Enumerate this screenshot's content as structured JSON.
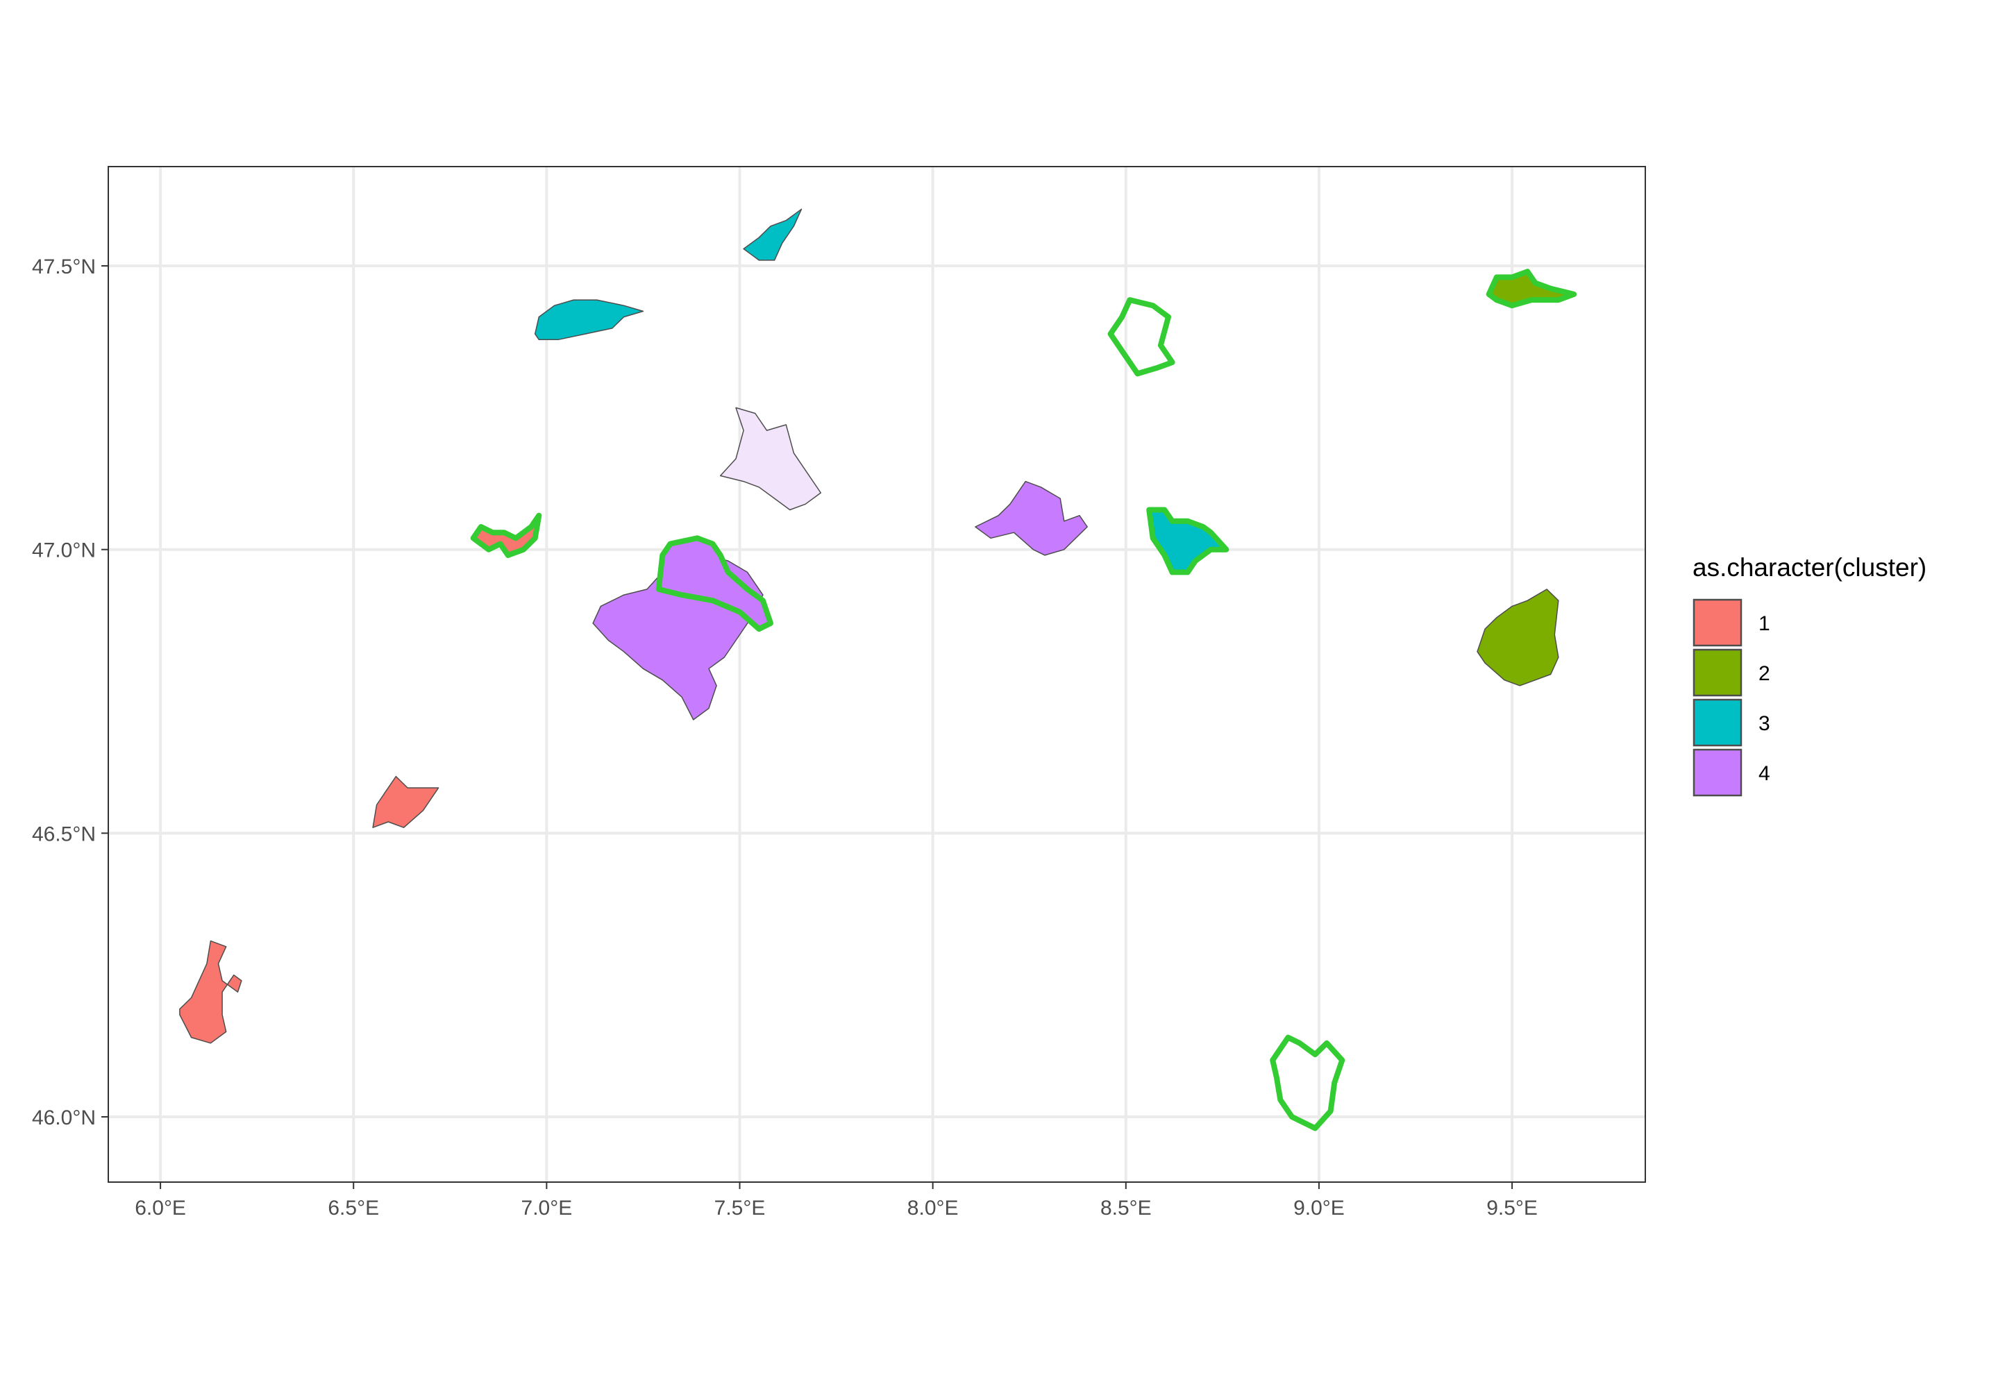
{
  "chart_data": {
    "type": "map",
    "title": "",
    "xlabel": "",
    "ylabel": "",
    "xlim": [
      5.865,
      9.845
    ],
    "ylim": [
      45.885,
      47.675
    ],
    "grid": true,
    "legend_placement": "right",
    "x_ticks": [
      {
        "value": 6.0,
        "label": "6.0°E"
      },
      {
        "value": 6.5,
        "label": "6.5°E"
      },
      {
        "value": 7.0,
        "label": "7.0°E"
      },
      {
        "value": 7.5,
        "label": "7.5°E"
      },
      {
        "value": 8.0,
        "label": "8.0°E"
      },
      {
        "value": 8.5,
        "label": "8.5°E"
      },
      {
        "value": 9.0,
        "label": "9.0°E"
      },
      {
        "value": 9.5,
        "label": "9.5°E"
      }
    ],
    "y_ticks": [
      {
        "value": 46.0,
        "label": "46.0°N"
      },
      {
        "value": 46.5,
        "label": "46.5°N"
      },
      {
        "value": 47.0,
        "label": "47.0°N"
      },
      {
        "value": 47.5,
        "label": "47.5°N"
      }
    ],
    "legend": {
      "title": "as.character(cluster)",
      "entries": [
        {
          "label": "1",
          "color": "#F8766D"
        },
        {
          "label": "2",
          "color": "#7CAE00"
        },
        {
          "label": "3",
          "color": "#00BFC4"
        },
        {
          "label": "4",
          "color": "#C77CFF"
        }
      ]
    },
    "highlight_color": "#33CC33",
    "regions": [
      {
        "cluster": "1",
        "fill": "#F8766D",
        "highlighted": false,
        "outline": [
          [
            6.05,
            46.18
          ],
          [
            6.08,
            46.14
          ],
          [
            6.13,
            46.13
          ],
          [
            6.17,
            46.15
          ],
          [
            6.16,
            46.18
          ],
          [
            6.16,
            46.22
          ],
          [
            6.19,
            46.25
          ],
          [
            6.21,
            46.24
          ],
          [
            6.2,
            46.22
          ],
          [
            6.16,
            46.24
          ],
          [
            6.15,
            46.27
          ],
          [
            6.17,
            46.3
          ],
          [
            6.13,
            46.31
          ],
          [
            6.12,
            46.27
          ],
          [
            6.1,
            46.24
          ],
          [
            6.08,
            46.21
          ],
          [
            6.05,
            46.19
          ]
        ]
      },
      {
        "cluster": "1",
        "fill": "#F8766D",
        "highlighted": false,
        "outline": [
          [
            6.55,
            46.51
          ],
          [
            6.56,
            46.55
          ],
          [
            6.58,
            46.57
          ],
          [
            6.61,
            46.6
          ],
          [
            6.64,
            46.58
          ],
          [
            6.72,
            46.58
          ],
          [
            6.68,
            46.54
          ],
          [
            6.63,
            46.51
          ],
          [
            6.59,
            46.52
          ],
          [
            6.55,
            46.51
          ]
        ]
      },
      {
        "cluster": "1",
        "fill": "#F8766D",
        "highlighted": true,
        "outline": [
          [
            6.81,
            47.02
          ],
          [
            6.83,
            47.04
          ],
          [
            6.86,
            47.03
          ],
          [
            6.89,
            47.03
          ],
          [
            6.92,
            47.02
          ],
          [
            6.94,
            47.03
          ],
          [
            6.96,
            47.04
          ],
          [
            6.98,
            47.06
          ],
          [
            6.97,
            47.02
          ],
          [
            6.94,
            47.0
          ],
          [
            6.9,
            46.99
          ],
          [
            6.88,
            47.01
          ],
          [
            6.85,
            47.0
          ],
          [
            6.81,
            47.02
          ]
        ]
      },
      {
        "cluster": "2",
        "fill": "#7CAE00",
        "highlighted": true,
        "outline": [
          [
            9.44,
            47.45
          ],
          [
            9.46,
            47.48
          ],
          [
            9.5,
            47.48
          ],
          [
            9.54,
            47.49
          ],
          [
            9.56,
            47.47
          ],
          [
            9.6,
            47.46
          ],
          [
            9.66,
            47.45
          ],
          [
            9.62,
            47.44
          ],
          [
            9.55,
            47.44
          ],
          [
            9.5,
            47.43
          ],
          [
            9.46,
            47.44
          ],
          [
            9.44,
            47.45
          ]
        ]
      },
      {
        "cluster": "2",
        "fill": "#7CAE00",
        "highlighted": false,
        "outline": [
          [
            9.41,
            46.82
          ],
          [
            9.43,
            46.86
          ],
          [
            9.46,
            46.88
          ],
          [
            9.5,
            46.9
          ],
          [
            9.54,
            46.91
          ],
          [
            9.59,
            46.93
          ],
          [
            9.62,
            46.91
          ],
          [
            9.61,
            46.85
          ],
          [
            9.62,
            46.81
          ],
          [
            9.6,
            46.78
          ],
          [
            9.56,
            46.77
          ],
          [
            9.52,
            46.76
          ],
          [
            9.48,
            46.77
          ],
          [
            9.43,
            46.8
          ],
          [
            9.41,
            46.82
          ]
        ]
      },
      {
        "cluster": "3",
        "fill": "#00BFC4",
        "highlighted": false,
        "outline": [
          [
            6.97,
            47.38
          ],
          [
            6.98,
            47.41
          ],
          [
            7.02,
            47.43
          ],
          [
            7.07,
            47.44
          ],
          [
            7.13,
            47.44
          ],
          [
            7.2,
            47.43
          ],
          [
            7.25,
            47.42
          ],
          [
            7.2,
            47.41
          ],
          [
            7.17,
            47.39
          ],
          [
            7.1,
            47.38
          ],
          [
            7.03,
            47.37
          ],
          [
            6.98,
            47.37
          ],
          [
            6.97,
            47.38
          ]
        ]
      },
      {
        "cluster": "3",
        "fill": "#00BFC4",
        "highlighted": false,
        "outline": [
          [
            7.51,
            47.53
          ],
          [
            7.55,
            47.55
          ],
          [
            7.58,
            47.57
          ],
          [
            7.62,
            47.58
          ],
          [
            7.66,
            47.6
          ],
          [
            7.64,
            47.57
          ],
          [
            7.61,
            47.54
          ],
          [
            7.59,
            47.51
          ],
          [
            7.55,
            47.51
          ],
          [
            7.53,
            47.52
          ],
          [
            7.51,
            47.53
          ]
        ]
      },
      {
        "cluster": "3",
        "fill": "#00BFC4",
        "highlighted": true,
        "outline": [
          [
            8.56,
            47.07
          ],
          [
            8.6,
            47.07
          ],
          [
            8.62,
            47.05
          ],
          [
            8.66,
            47.05
          ],
          [
            8.7,
            47.04
          ],
          [
            8.72,
            47.03
          ],
          [
            8.76,
            47.0
          ],
          [
            8.72,
            47.0
          ],
          [
            8.68,
            46.98
          ],
          [
            8.66,
            46.96
          ],
          [
            8.62,
            46.96
          ],
          [
            8.6,
            46.99
          ],
          [
            8.57,
            47.02
          ],
          [
            8.56,
            47.07
          ]
        ]
      },
      {
        "cluster": "4",
        "fill": "#C77CFF",
        "highlighted": false,
        "outline": [
          [
            8.11,
            47.04
          ],
          [
            8.17,
            47.06
          ],
          [
            8.2,
            47.08
          ],
          [
            8.24,
            47.12
          ],
          [
            8.28,
            47.11
          ],
          [
            8.33,
            47.09
          ],
          [
            8.34,
            47.05
          ],
          [
            8.38,
            47.06
          ],
          [
            8.4,
            47.04
          ],
          [
            8.37,
            47.02
          ],
          [
            8.34,
            47.0
          ],
          [
            8.29,
            46.99
          ],
          [
            8.26,
            47.0
          ],
          [
            8.21,
            47.03
          ],
          [
            8.15,
            47.02
          ],
          [
            8.11,
            47.04
          ]
        ]
      },
      {
        "cluster": "4",
        "fill": "#C77CFF",
        "highlighted": false,
        "outline": [
          [
            7.12,
            46.87
          ],
          [
            7.14,
            46.9
          ],
          [
            7.2,
            46.92
          ],
          [
            7.26,
            46.93
          ],
          [
            7.3,
            46.96
          ],
          [
            7.34,
            46.98
          ],
          [
            7.41,
            46.99
          ],
          [
            7.47,
            46.98
          ],
          [
            7.52,
            46.96
          ],
          [
            7.56,
            46.92
          ],
          [
            7.53,
            46.88
          ],
          [
            7.49,
            46.84
          ],
          [
            7.46,
            46.81
          ],
          [
            7.42,
            46.79
          ],
          [
            7.44,
            46.76
          ],
          [
            7.42,
            46.72
          ],
          [
            7.38,
            46.7
          ],
          [
            7.35,
            46.74
          ],
          [
            7.3,
            46.77
          ],
          [
            7.25,
            46.79
          ],
          [
            7.2,
            46.82
          ],
          [
            7.16,
            46.84
          ],
          [
            7.12,
            46.87
          ]
        ]
      },
      {
        "cluster": "4",
        "fill": "#C77CFF",
        "highlighted": true,
        "outline": [
          [
            7.3,
            46.99
          ],
          [
            7.32,
            47.01
          ],
          [
            7.39,
            47.02
          ],
          [
            7.43,
            47.01
          ],
          [
            7.45,
            46.99
          ],
          [
            7.47,
            46.96
          ],
          [
            7.52,
            46.93
          ],
          [
            7.56,
            46.91
          ],
          [
            7.58,
            46.87
          ],
          [
            7.55,
            46.86
          ],
          [
            7.5,
            46.89
          ],
          [
            7.43,
            46.91
          ],
          [
            7.35,
            46.92
          ],
          [
            7.29,
            46.93
          ],
          [
            7.3,
            46.99
          ]
        ]
      },
      {
        "cluster": "",
        "fill": "#F2E4FA",
        "highlighted": false,
        "outline": [
          [
            7.45,
            47.13
          ],
          [
            7.49,
            47.16
          ],
          [
            7.51,
            47.21
          ],
          [
            7.49,
            47.25
          ],
          [
            7.54,
            47.24
          ],
          [
            7.57,
            47.21
          ],
          [
            7.62,
            47.22
          ],
          [
            7.64,
            47.17
          ],
          [
            7.66,
            47.15
          ],
          [
            7.71,
            47.1
          ],
          [
            7.67,
            47.08
          ],
          [
            7.63,
            47.07
          ],
          [
            7.59,
            47.09
          ],
          [
            7.55,
            47.11
          ],
          [
            7.51,
            47.12
          ],
          [
            7.45,
            47.13
          ]
        ]
      },
      {
        "cluster": "",
        "fill": "none",
        "highlighted": true,
        "outline": [
          [
            8.46,
            47.38
          ],
          [
            8.49,
            47.41
          ],
          [
            8.51,
            47.44
          ],
          [
            8.57,
            47.43
          ],
          [
            8.61,
            47.41
          ],
          [
            8.59,
            47.36
          ],
          [
            8.62,
            47.33
          ],
          [
            8.58,
            47.32
          ],
          [
            8.53,
            47.31
          ],
          [
            8.5,
            47.34
          ],
          [
            8.46,
            47.38
          ]
        ]
      },
      {
        "cluster": "",
        "fill": "none",
        "highlighted": true,
        "outline": [
          [
            8.88,
            46.1
          ],
          [
            8.92,
            46.14
          ],
          [
            8.95,
            46.13
          ],
          [
            8.99,
            46.11
          ],
          [
            9.02,
            46.13
          ],
          [
            9.06,
            46.1
          ],
          [
            9.04,
            46.06
          ],
          [
            9.03,
            46.01
          ],
          [
            8.99,
            45.98
          ],
          [
            8.96,
            45.99
          ],
          [
            8.93,
            46.0
          ],
          [
            8.9,
            46.03
          ],
          [
            8.89,
            46.07
          ],
          [
            8.88,
            46.1
          ]
        ]
      }
    ]
  }
}
